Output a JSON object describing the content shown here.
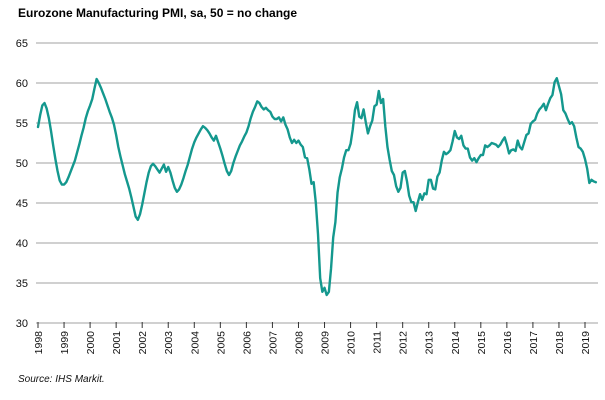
{
  "chart_data": {
    "type": "line",
    "title": "Eurozone Manufacturing PMI, sa, 50 = no change",
    "source": "Source: IHS Markit.",
    "xlabel": "",
    "ylabel": "",
    "ylim": [
      30,
      65
    ],
    "yticks": [
      30,
      35,
      40,
      45,
      50,
      55,
      60,
      65
    ],
    "grid": true,
    "legend_position": "none",
    "line_color": "#14988e",
    "grid_color": "#b3b3b3",
    "tick_color": "#333333",
    "xtick_labels": [
      "1998",
      "1999",
      "2000",
      "2001",
      "2002",
      "2003",
      "2004",
      "2005",
      "2006",
      "2007",
      "2008",
      "2009",
      "2010",
      "2011",
      "2012",
      "2013",
      "2014",
      "2015",
      "2016",
      "2017",
      "2018",
      "2019"
    ],
    "x_start": "1998-01",
    "x_end": "2019-06",
    "frequency": "monthly",
    "series": [
      {
        "name": "Eurozone Manufacturing PMI",
        "values": [
          54.5,
          56.0,
          57.2,
          57.5,
          56.8,
          55.6,
          54.0,
          52.2,
          50.5,
          49.0,
          47.8,
          47.3,
          47.3,
          47.6,
          48.2,
          48.9,
          49.6,
          50.3,
          51.3,
          52.3,
          53.4,
          54.4,
          55.6,
          56.5,
          57.2,
          58.0,
          59.3,
          60.5,
          60.0,
          59.4,
          58.7,
          58.0,
          57.2,
          56.4,
          55.7,
          54.8,
          53.5,
          52.0,
          50.8,
          49.7,
          48.6,
          47.7,
          46.8,
          45.7,
          44.5,
          43.3,
          42.9,
          43.6,
          44.8,
          46.2,
          47.6,
          48.8,
          49.6,
          49.9,
          49.6,
          49.2,
          48.8,
          49.3,
          49.8,
          48.9,
          49.5,
          48.8,
          47.8,
          46.9,
          46.4,
          46.7,
          47.3,
          48.1,
          49.0,
          49.8,
          50.8,
          51.8,
          52.6,
          53.2,
          53.7,
          54.2,
          54.6,
          54.4,
          54.1,
          53.7,
          53.2,
          52.8,
          53.4,
          52.6,
          51.8,
          50.9,
          49.9,
          49.0,
          48.5,
          49.0,
          50.0,
          50.8,
          51.5,
          52.2,
          52.7,
          53.3,
          53.8,
          54.6,
          55.6,
          56.4,
          57.0,
          57.7,
          57.5,
          57.0,
          56.7,
          56.9,
          56.6,
          56.4,
          55.8,
          55.5,
          55.5,
          55.7,
          55.2,
          55.7,
          54.8,
          54.2,
          53.2,
          52.5,
          52.9,
          52.5,
          52.8,
          52.3,
          52.0,
          50.7,
          50.6,
          49.2,
          47.4,
          47.6,
          45.0,
          41.1,
          35.6,
          33.9,
          34.4,
          33.5,
          33.9,
          36.8,
          40.7,
          42.6,
          46.3,
          48.2,
          49.3,
          50.7,
          51.6,
          51.6,
          52.4,
          54.2,
          56.6,
          57.6,
          55.8,
          55.6,
          56.7,
          55.1,
          53.7,
          54.6,
          55.3,
          57.1,
          57.3,
          59.0,
          57.5,
          58.0,
          54.6,
          52.0,
          50.4,
          49.0,
          48.5,
          47.1,
          46.4,
          46.9,
          48.8,
          49.0,
          47.7,
          45.9,
          45.1,
          45.1,
          44.0,
          45.1,
          46.1,
          45.4,
          46.2,
          46.1,
          47.9,
          47.9,
          46.8,
          46.7,
          48.3,
          48.8,
          50.3,
          51.4,
          51.1,
          51.3,
          51.6,
          52.7,
          54.0,
          53.2,
          53.0,
          53.4,
          52.2,
          51.8,
          51.8,
          50.7,
          50.3,
          50.6,
          50.1,
          50.6,
          51.0,
          51.0,
          52.2,
          52.0,
          52.2,
          52.5,
          52.4,
          52.3,
          52.0,
          52.3,
          52.8,
          53.2,
          52.3,
          51.2,
          51.6,
          51.7,
          51.5,
          52.8,
          52.0,
          51.7,
          52.6,
          53.5,
          53.7,
          54.9,
          55.2,
          55.4,
          56.2,
          56.7,
          57.0,
          57.4,
          56.6,
          57.4,
          58.1,
          58.5,
          60.1,
          60.6,
          59.6,
          58.6,
          56.6,
          56.2,
          55.5,
          54.9,
          55.1,
          54.6,
          53.2,
          52.0,
          51.8,
          51.4,
          50.5,
          49.3,
          47.5,
          47.9,
          47.7,
          47.6
        ]
      }
    ]
  }
}
